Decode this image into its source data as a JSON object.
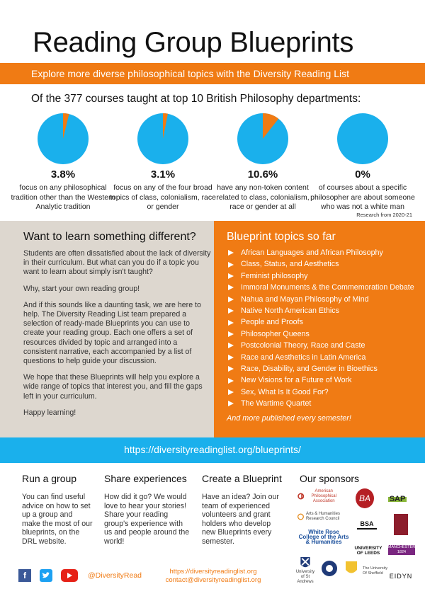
{
  "header": {
    "title": "Reading Group Blueprints",
    "banner": "Explore more diverse philosophical topics with the Diversity Reading List"
  },
  "stats": {
    "intro": "Of the 377 courses taught at top 10 British Philosophy departments:",
    "items": [
      {
        "percent": "3.8%",
        "value": 3.8,
        "desc": "focus on any philosophical tradition other than the Western Analytic tradition"
      },
      {
        "percent": "3.1%",
        "value": 3.1,
        "desc": "focus on any of the four broad topics of class, colonialism, race or gender"
      },
      {
        "percent": "10.6%",
        "value": 10.6,
        "desc": "have any non-token content related to class, colonialism, race or gender at all"
      },
      {
        "percent": "0%",
        "value": 0,
        "desc": "of courses about a specific philosopher are about someone who was not a white man"
      }
    ],
    "note": "Research from 2020-21"
  },
  "chart_data": {
    "type": "pie",
    "series": [
      {
        "values": [
          3.8,
          96.2
        ]
      },
      {
        "values": [
          3.1,
          96.9
        ]
      },
      {
        "values": [
          10.6,
          89.4
        ]
      },
      {
        "values": [
          0,
          100
        ]
      }
    ],
    "colors": {
      "highlight": "#f07b14",
      "rest": "#1ab0ec"
    }
  },
  "left": {
    "heading": "Want to learn something different?",
    "paragraphs": [
      "Students are often dissatisfied about the lack of diversity in their curriculum. But what can you do if a topic you want to learn about simply isn't taught?",
      "Why, start your own reading group!",
      "And if this sounds like a daunting task, we are here to help. The Diversity Reading List team prepared a selection of ready-made Blueprints you can use to create your reading group. Each one offers a set of resources divided by topic and arranged into a consistent narrative, each accompanied by a list of questions to help guide your discussion.",
      "We hope that these Blueprints will help you explore a wide range of topics that interest you, and fill the gaps left in your curriculum.",
      "Happy learning!"
    ]
  },
  "right": {
    "heading": "Blueprint topics so far",
    "topics": [
      "African Languages and African Philosophy",
      "Class, Status, and Aesthetics",
      "Feminist philosophy",
      "Immoral Monuments & the Commemoration Debate",
      "Nahua and Mayan Philosophy of Mind",
      "Native North American Ethics",
      "People and Proofs",
      "Philosopher Queens",
      "Postcolonial Theory, Race and Caste",
      "Race and Aesthetics in Latin America",
      "Race, Disability, and Gender in Bioethics",
      "New Visions for a Future of Work",
      "Sex, What Is It Good For?",
      "The Wartime Quartet"
    ],
    "more": "And more published every semester!"
  },
  "link_band": "https://diversityreadinglist.org/blueprints/",
  "bottom": {
    "run": {
      "heading": "Run a group",
      "text": "You can find useful advice on how to set up a group and make the most of our blueprints, on the DRL website."
    },
    "share": {
      "heading": "Share experiences",
      "text": "How did it go? We would love to hear your stories! Share your reading group's experience with us and people around the world!"
    },
    "create": {
      "heading": "Create a Blueprint",
      "text": "Have an idea? Join our team of experienced volunteers and grant holders who develop new Blueprints every semester."
    },
    "sponsors": {
      "heading": "Our sponsors",
      "logos": [
        {
          "text": "American Philosophical Association",
          "icon": "apa-logo"
        },
        {
          "text": "BA",
          "icon": "british-academy-logo"
        },
        {
          "text": "SAP",
          "icon": "sap-logo"
        },
        {
          "text": "Arts & Humanities Research Council",
          "icon": "ahrc-logo"
        },
        {
          "text": "BSA",
          "icon": "bsa-logo"
        },
        {
          "text": "White Rose College of the Arts & Humanities",
          "icon": "white-rose-logo"
        },
        {
          "text": "UNIVERSITY OF LEEDS",
          "icon": "leeds-logo"
        },
        {
          "text": "MANCHESTER 1824",
          "icon": "manchester-logo"
        },
        {
          "text": "University of St Andrews",
          "icon": "st-andrews-logo"
        },
        {
          "text": "EIDYN",
          "icon": "eidyn-logo"
        },
        {
          "text": "UNIVERSITY OF Sheffield",
          "icon": "sheffield-logo"
        },
        {
          "text": "The University Of Sheffield",
          "icon": "sheffield-crest"
        }
      ]
    }
  },
  "footer": {
    "handle": "@DiversityRead",
    "website": "https://diversityreadinglist.org",
    "email": "contact@diversityreadinglist.org"
  },
  "colors": {
    "orange": "#f07b14",
    "blue": "#1ab0ec",
    "beige": "#ddd7cf"
  }
}
